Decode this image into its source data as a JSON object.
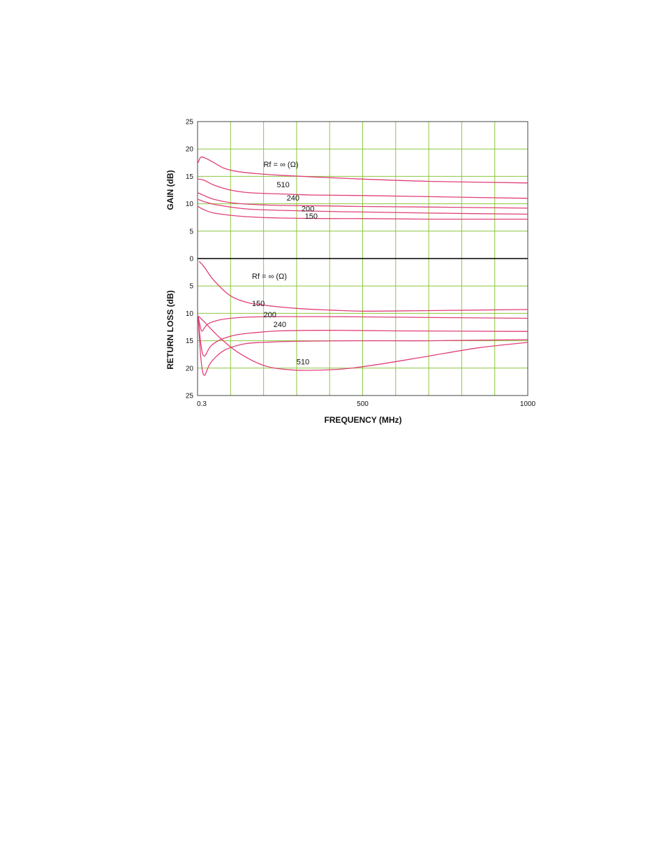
{
  "chart_data": {
    "type": "line",
    "xlabel": "FREQUENCY (MHz)",
    "xlim": [
      0.3,
      1000
    ],
    "x_ticks": [
      "0.3",
      "500",
      "1000"
    ],
    "grid": true,
    "grid_color": "#8cc63f",
    "curve_color": "#e0407a",
    "panels": [
      {
        "name": "gain",
        "ylabel": "GAIN (dB)",
        "ylim": [
          0,
          25
        ],
        "y_direction": "up",
        "y_ticks": [
          "25",
          "20",
          "15",
          "10",
          "5",
          "0"
        ],
        "series": [
          {
            "label": "Rf = ∞ (Ω)",
            "label_pos": [
              200,
              16.7
            ],
            "x": [
              2,
              10,
              25,
              50,
              80,
              120,
              180,
              250,
              350,
              500,
              700,
              1000
            ],
            "y": [
              17.5,
              18.5,
              18.3,
              17.5,
              16.5,
              15.9,
              15.5,
              15.2,
              14.9,
              14.5,
              14.1,
              13.8
            ]
          },
          {
            "label": "510",
            "label_pos": [
              240,
              13.0
            ],
            "x": [
              2,
              20,
              50,
              100,
              160,
              250,
              350,
              500,
              700,
              1000
            ],
            "y": [
              14.5,
              14.3,
              13.4,
              12.5,
              12.0,
              11.8,
              11.6,
              11.5,
              11.3,
              11.0
            ]
          },
          {
            "label": "240",
            "label_pos": [
              270,
              10.6
            ],
            "x": [
              2,
              20,
              50,
              100,
              160,
              250,
              400,
              500,
              700,
              1000
            ],
            "y": [
              12.0,
              11.5,
              10.8,
              10.2,
              9.9,
              9.7,
              9.6,
              9.5,
              9.4,
              9.2
            ]
          },
          {
            "label": "200",
            "label_pos": [
              315,
              8.6
            ],
            "x": [
              2,
              20,
              50,
              100,
              160,
              250,
              400,
              500,
              700,
              1000
            ],
            "y": [
              10.8,
              10.4,
              9.9,
              9.4,
              9.0,
              8.8,
              8.6,
              8.5,
              8.3,
              8.1
            ]
          },
          {
            "label": "150",
            "label_pos": [
              325,
              7.3
            ],
            "x": [
              2,
              20,
              50,
              100,
              160,
              250,
              400,
              500,
              700,
              1000
            ],
            "y": [
              9.5,
              8.9,
              8.3,
              7.9,
              7.6,
              7.4,
              7.3,
              7.3,
              7.2,
              7.2
            ]
          }
        ]
      },
      {
        "name": "return-loss",
        "ylabel": "RETURN LOSS (dB)",
        "ylim": [
          0,
          25
        ],
        "y_direction": "down",
        "y_ticks": [
          "0",
          "5",
          "10",
          "15",
          "20",
          "25"
        ],
        "series": [
          {
            "label": "Rf = ∞ (Ω)",
            "label_pos": [
              165,
              3.7
            ],
            "x": [
              5,
              20,
              50,
              100,
              150,
              200,
              300,
              400,
              500,
              700,
              1000
            ],
            "y": [
              0.5,
              1.5,
              4.0,
              6.8,
              8.0,
              8.5,
              9.1,
              9.4,
              9.6,
              9.5,
              9.3
            ]
          },
          {
            "label": "150",
            "label_pos": [
              165,
              8.7
            ],
            "x": [
              2,
              10,
              15,
              30,
              60,
              100,
              150,
              250,
              400,
              600,
              1000
            ],
            "y": [
              10.5,
              12.8,
              13.2,
              12.0,
              11.3,
              10.9,
              10.7,
              10.6,
              10.6,
              10.7,
              10.9
            ]
          },
          {
            "label": "200",
            "label_pos": [
              200,
              10.7
            ],
            "x": [
              2,
              10,
              20,
              40,
              70,
              120,
              180,
              250,
              400,
              600,
              1000
            ],
            "y": [
              10.5,
              15.5,
              17.8,
              16.0,
              14.8,
              13.9,
              13.5,
              13.2,
              13.1,
              13.2,
              13.3
            ]
          },
          {
            "label": "240",
            "label_pos": [
              230,
              12.5
            ],
            "x": [
              2,
              10,
              20,
              40,
              80,
              140,
              200,
              300,
              500,
              700,
              1000
            ],
            "y": [
              10.5,
              18.0,
              21.3,
              19.0,
              16.8,
              15.6,
              15.3,
              15.1,
              15.0,
              15.0,
              14.8
            ]
          },
          {
            "label": "510",
            "label_pos": [
              300,
              19.3
            ],
            "x": [
              2,
              20,
              60,
              120,
              200,
              280,
              350,
              450,
              550,
              700,
              850,
              1000
            ],
            "y": [
              10.5,
              11.5,
              14.0,
              17.0,
              19.5,
              20.3,
              20.4,
              20.1,
              19.3,
              17.8,
              16.3,
              15.3
            ]
          }
        ]
      }
    ]
  }
}
